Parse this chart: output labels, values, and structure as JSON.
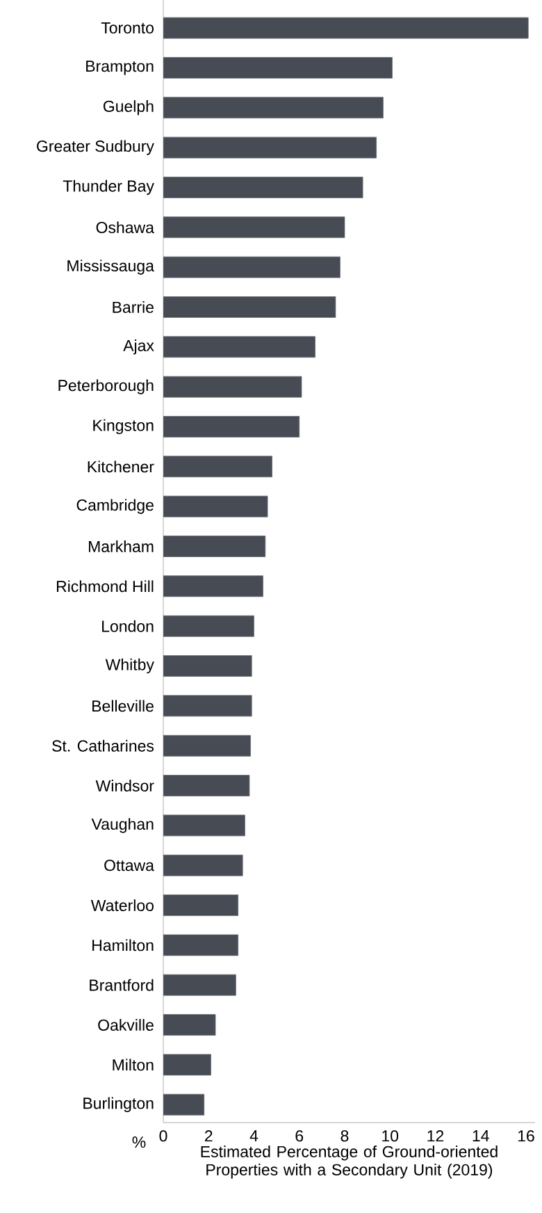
{
  "chart_data": {
    "type": "bar",
    "orientation": "horizontal",
    "xlabel": "Estimated Percentage of Ground-oriented Properties with a Secondary Unit (2019)",
    "annotations": [
      "%"
    ],
    "categories": [
      "Toronto",
      "Brampton",
      "Guelph",
      "Greater Sudbury",
      "Thunder Bay",
      "Oshawa",
      "Mississauga",
      "Barrie",
      "Ajax",
      "Peterborough",
      "Kingston",
      "Kitchener",
      "Cambridge",
      "Markham",
      "Richmond Hill",
      "London",
      "Whitby",
      "Belleville",
      "St. Catharines",
      "Windsor",
      "Vaughan",
      "Ottawa",
      "Waterloo",
      "Hamilton",
      "Brantford",
      "Oakville",
      "Milton",
      "Burlington"
    ],
    "values": [
      16.1,
      10.1,
      9.7,
      9.4,
      8.8,
      8.0,
      7.8,
      7.6,
      6.7,
      6.1,
      6.0,
      4.8,
      4.6,
      4.5,
      4.4,
      4.0,
      3.9,
      3.9,
      3.85,
      3.8,
      3.6,
      3.5,
      3.3,
      3.3,
      3.2,
      2.3,
      2.1,
      1.8
    ],
    "color": "#474b54",
    "xlim": [
      0,
      16.4
    ],
    "xticks": [
      0,
      2,
      4,
      6,
      8,
      10,
      12,
      14,
      16
    ],
    "grid": false
  }
}
